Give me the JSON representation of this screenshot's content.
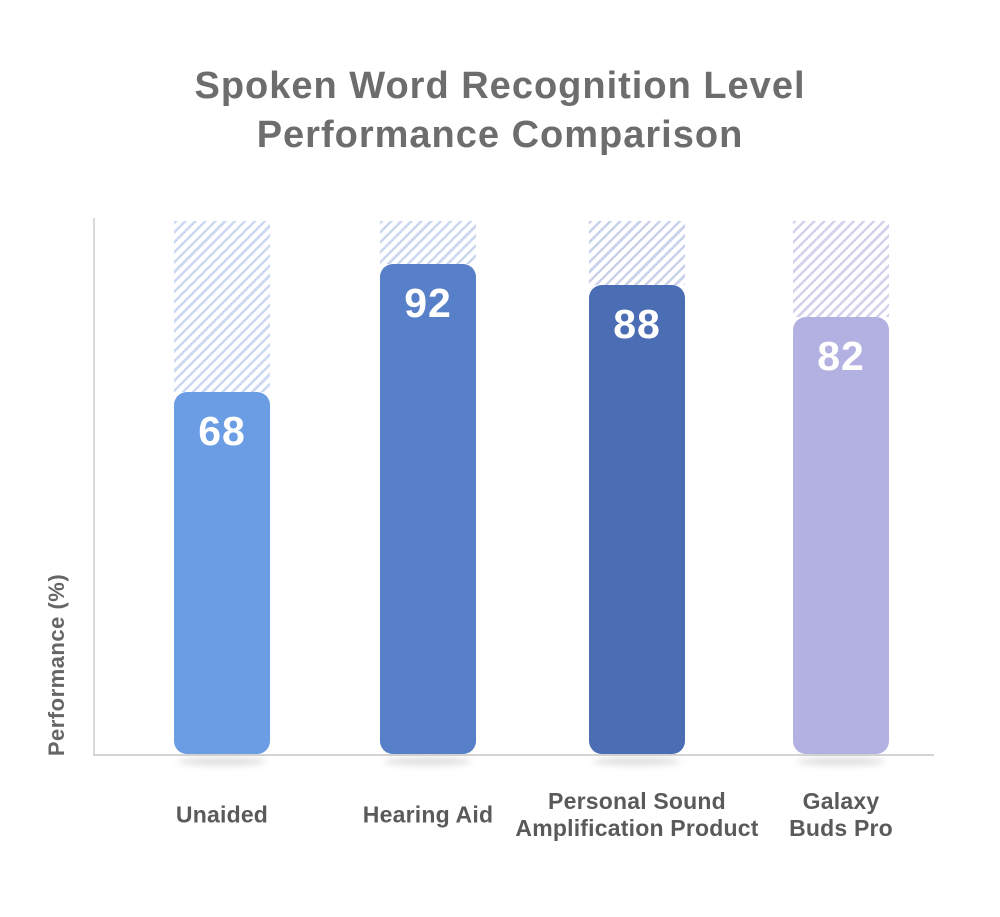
{
  "title": {
    "lines": [
      "Spoken Word Recognition Level",
      "Performance Comparison"
    ]
  },
  "y_axis": {
    "label": "Performance (%)"
  },
  "chart_data": {
    "type": "bar",
    "title": "Spoken Word Recognition Level Performance Comparison",
    "ylabel": "Performance (%)",
    "ylim": [
      0,
      100
    ],
    "grid": false,
    "legend": false,
    "categories": [
      "Unaided",
      "Hearing Aid",
      "Personal Sound Amplification Product",
      "Galaxy Buds Pro"
    ],
    "values": [
      68,
      92,
      88,
      82
    ],
    "hatch_extends_to": 100,
    "bar_colors": [
      "#6b9de4",
      "#5880c8",
      "#4b6db4",
      "#b3b1e1"
    ],
    "hatch_colors": [
      "#ccd7f0",
      "#ccd6ee",
      "#c9d2ea",
      "#d3d1ec"
    ]
  },
  "labels": {
    "category_lines": [
      [
        "Unaided"
      ],
      [
        "Hearing Aid"
      ],
      [
        "Personal Sound",
        "Amplification Product"
      ],
      [
        "Galaxy",
        "Buds Pro"
      ]
    ]
  }
}
